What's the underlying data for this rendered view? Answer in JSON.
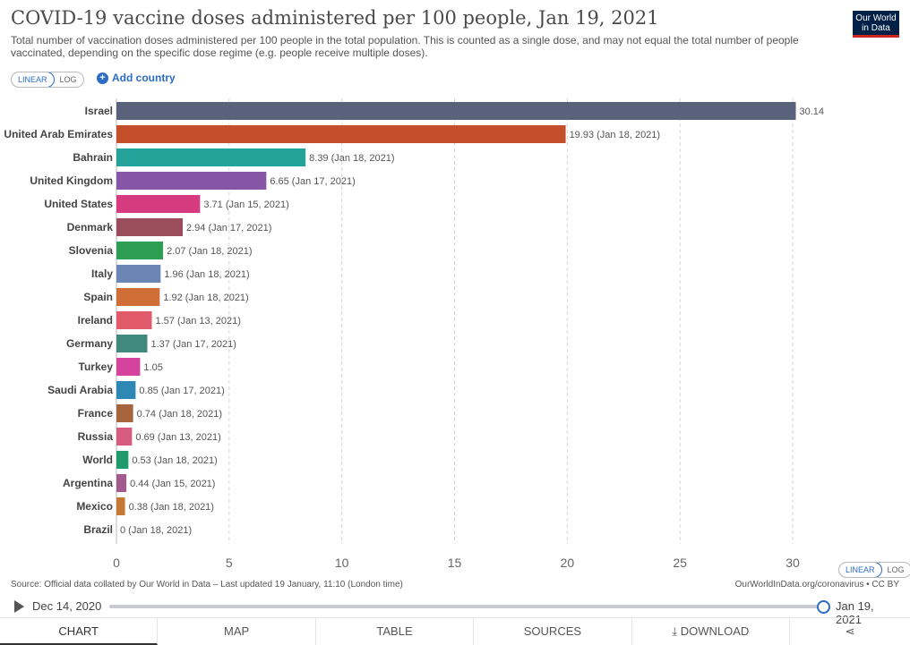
{
  "header": {
    "title": "COVID-19 vaccine doses administered per 100 people, Jan 19, 2021",
    "subtitle": "Total number of vaccination doses administered per 100 people in the total population. This is counted as a single dose, and may not equal the total number of people vaccinated, depending on the specific dose regime (e.g. people receive multiple doses).",
    "logo_line1": "Our World",
    "logo_line2": "in Data"
  },
  "controls": {
    "linear": "LINEAR",
    "log": "LOG",
    "add_country": "Add country"
  },
  "chart_data": {
    "type": "bar",
    "orientation": "horizontal",
    "categories": [
      "Israel",
      "United Arab Emirates",
      "Bahrain",
      "United Kingdom",
      "United States",
      "Denmark",
      "Slovenia",
      "Italy",
      "Spain",
      "Ireland",
      "Germany",
      "Turkey",
      "Saudi Arabia",
      "France",
      "Russia",
      "World",
      "Argentina",
      "Mexico",
      "Brazil"
    ],
    "values": [
      30.14,
      19.93,
      8.39,
      6.65,
      3.71,
      2.94,
      2.07,
      1.96,
      1.92,
      1.57,
      1.37,
      1.05,
      0.85,
      0.74,
      0.69,
      0.53,
      0.44,
      0.38,
      0
    ],
    "value_labels": [
      "30.14",
      "19.93 (Jan 18, 2021)",
      "8.39 (Jan 18, 2021)",
      "6.65 (Jan 17, 2021)",
      "3.71 (Jan 15, 2021)",
      "2.94 (Jan 17, 2021)",
      "2.07 (Jan 18, 2021)",
      "1.96 (Jan 18, 2021)",
      "1.92 (Jan 18, 2021)",
      "1.57 (Jan 13, 2021)",
      "1.37 (Jan 17, 2021)",
      "1.05",
      "0.85 (Jan 17, 2021)",
      "0.74 (Jan 18, 2021)",
      "0.69 (Jan 13, 2021)",
      "0.53 (Jan 18, 2021)",
      "0.44 (Jan 15, 2021)",
      "0.38 (Jan 18, 2021)",
      "0 (Jan 18, 2021)"
    ],
    "colors": [
      "#58627a",
      "#c4502b",
      "#23a399",
      "#8755a6",
      "#d63a7f",
      "#9a4d5a",
      "#2e9e55",
      "#6b85b4",
      "#cf6f37",
      "#e05a6a",
      "#3f8a7d",
      "#d4449e",
      "#2d88b3",
      "#a6643f",
      "#d65c80",
      "#1e9a6c",
      "#a35a8c",
      "#c47a35",
      "#999999"
    ],
    "xlim": [
      0,
      30
    ],
    "xticks": [
      0,
      5,
      10,
      15,
      20,
      25,
      30
    ],
    "grid": true
  },
  "footer": {
    "source": "Source: Official data collated by Our World in Data – Last updated 19 January, 11:10 (London time)",
    "url": "OurWorldInData.org/coronavirus • CC BY"
  },
  "timeline": {
    "start": "Dec 14, 2020",
    "end": "Jan 19, 2021"
  },
  "tabs": [
    "CHART",
    "MAP",
    "TABLE",
    "SOURCES",
    "DOWNLOAD"
  ]
}
